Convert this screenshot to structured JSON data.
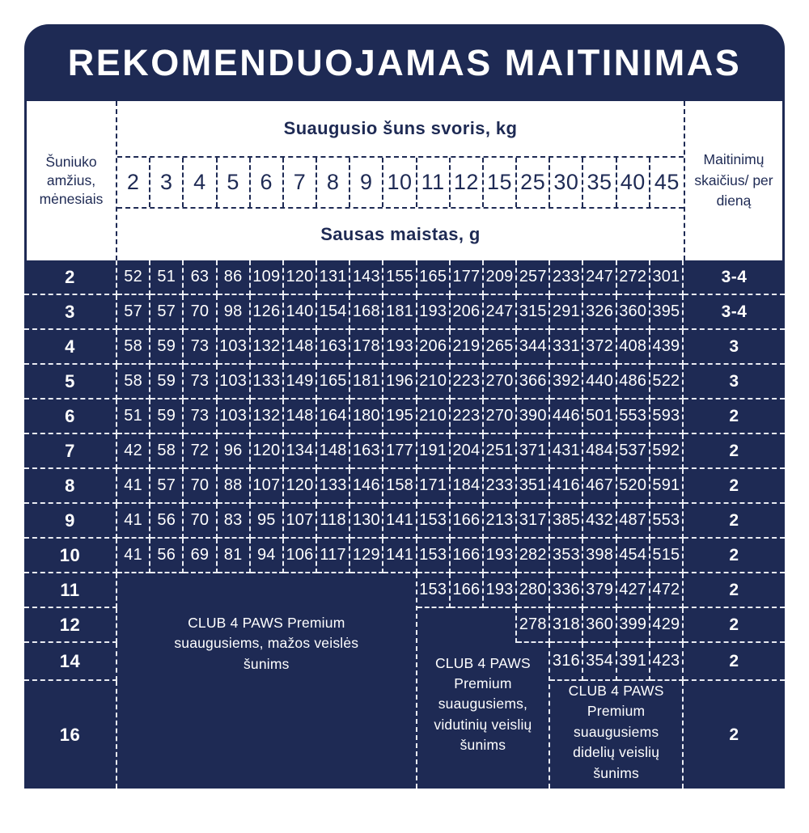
{
  "title": "REKOMENDUOJAMAS MAITINIMAS",
  "colors": {
    "navy": "#1e2a54",
    "white": "#ffffff",
    "dash_on_navy": "#e9ebf2"
  },
  "table": {
    "age_header": "Šuniuko amžius, mėnesiais",
    "adult_weight_header": "Suaugusio šuns svoris, kg",
    "dry_food_header": "Sausas maistas, g",
    "feedings_header": "Maitinimų skaičius/ per dieną",
    "weights_kg": [
      "2",
      "3",
      "4",
      "5",
      "6",
      "7",
      "8",
      "9",
      "10",
      "11",
      "12",
      "15",
      "25",
      "30",
      "35",
      "40",
      "45"
    ],
    "rows": [
      {
        "age": "2",
        "values": [
          "52",
          "51",
          "63",
          "86",
          "109",
          "120",
          "131",
          "143",
          "155",
          "165",
          "177",
          "209",
          "257",
          "233",
          "247",
          "272",
          "301"
        ],
        "feedings": "3-4"
      },
      {
        "age": "3",
        "values": [
          "57",
          "57",
          "70",
          "98",
          "126",
          "140",
          "154",
          "168",
          "181",
          "193",
          "206",
          "247",
          "315",
          "291",
          "326",
          "360",
          "395"
        ],
        "feedings": "3-4"
      },
      {
        "age": "4",
        "values": [
          "58",
          "59",
          "73",
          "103",
          "132",
          "148",
          "163",
          "178",
          "193",
          "206",
          "219",
          "265",
          "344",
          "331",
          "372",
          "408",
          "439"
        ],
        "feedings": "3"
      },
      {
        "age": "5",
        "values": [
          "58",
          "59",
          "73",
          "103",
          "133",
          "149",
          "165",
          "181",
          "196",
          "210",
          "223",
          "270",
          "366",
          "392",
          "440",
          "486",
          "522"
        ],
        "feedings": "3"
      },
      {
        "age": "6",
        "values": [
          "51",
          "59",
          "73",
          "103",
          "132",
          "148",
          "164",
          "180",
          "195",
          "210",
          "223",
          "270",
          "390",
          "446",
          "501",
          "553",
          "593"
        ],
        "feedings": "2"
      },
      {
        "age": "7",
        "values": [
          "42",
          "58",
          "72",
          "96",
          "120",
          "134",
          "148",
          "163",
          "177",
          "191",
          "204",
          "251",
          "371",
          "431",
          "484",
          "537",
          "592"
        ],
        "feedings": "2"
      },
      {
        "age": "8",
        "values": [
          "41",
          "57",
          "70",
          "88",
          "107",
          "120",
          "133",
          "146",
          "158",
          "171",
          "184",
          "233",
          "351",
          "416",
          "467",
          "520",
          "591"
        ],
        "feedings": "2"
      },
      {
        "age": "9",
        "values": [
          "41",
          "56",
          "70",
          "83",
          "95",
          "107",
          "118",
          "130",
          "141",
          "153",
          "166",
          "213",
          "317",
          "385",
          "432",
          "487",
          "553"
        ],
        "feedings": "2"
      },
      {
        "age": "10",
        "values": [
          "41",
          "56",
          "69",
          "81",
          "94",
          "106",
          "117",
          "129",
          "141",
          "153",
          "166",
          "193",
          "282",
          "353",
          "398",
          "454",
          "515"
        ],
        "feedings": "2"
      },
      {
        "age": "11",
        "values": [
          null,
          null,
          null,
          null,
          null,
          null,
          null,
          null,
          null,
          "153",
          "166",
          "193",
          "280",
          "336",
          "379",
          "427",
          "472"
        ],
        "feedings": "2"
      },
      {
        "age": "12",
        "values": [
          null,
          null,
          null,
          null,
          null,
          null,
          null,
          null,
          null,
          null,
          null,
          null,
          "278",
          "318",
          "360",
          "399",
          "429"
        ],
        "feedings": "2"
      },
      {
        "age": "14",
        "values": [
          null,
          null,
          null,
          null,
          null,
          null,
          null,
          null,
          null,
          null,
          null,
          null,
          null,
          "316",
          "354",
          "391",
          "423"
        ],
        "feedings": "2"
      },
      {
        "age": "16",
        "values": [
          null,
          null,
          null,
          null,
          null,
          null,
          null,
          null,
          null,
          null,
          null,
          null,
          null,
          null,
          null,
          null,
          null
        ],
        "feedings": "2"
      }
    ],
    "merged_notes": {
      "small_breeds": "CLUB 4 PAWS Premium suaugusiems, mažos veislės šunims",
      "medium_breeds": "CLUB 4 PAWS Premium suaugusiems, vidutinių veislių šunims",
      "large_breeds": "CLUB 4 PAWS Premium suaugusiems didelių veislių šunims"
    }
  }
}
